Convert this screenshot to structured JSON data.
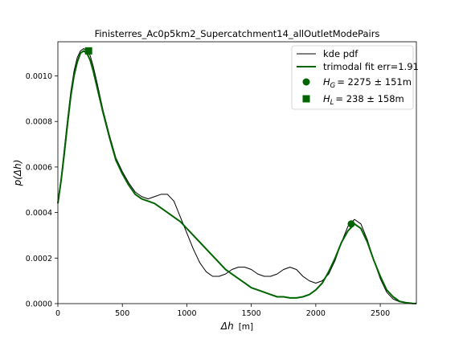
{
  "chart_data": {
    "type": "line",
    "title": "Finisterres_Ac0p5km2_Supercatchment14_allOutletModePairs",
    "xlabel": {
      "math": "Δh",
      "unit": "[m]"
    },
    "ylabel": {
      "math": "p(Δh)"
    },
    "xlim": [
      0,
      2780
    ],
    "ylim": [
      0,
      0.00115
    ],
    "grid": false,
    "legend_position": "upper right",
    "x_ticks": [
      0,
      500,
      1000,
      1500,
      2000,
      2500
    ],
    "x_tick_labels": [
      "0",
      "500",
      "1000",
      "1500",
      "2000",
      "2500"
    ],
    "y_ticks": [
      0,
      0.0002,
      0.0004,
      0.0006,
      0.0008,
      0.001
    ],
    "y_tick_labels": [
      "0.0000",
      "0.0002",
      "0.0004",
      "0.0006",
      "0.0008",
      "0.0010"
    ],
    "series": [
      {
        "name": "kde pdf",
        "color": "#000000",
        "style": "thin-line",
        "x": [
          0,
          25,
          50,
          75,
          100,
          125,
          150,
          175,
          200,
          225,
          250,
          275,
          300,
          350,
          400,
          450,
          500,
          550,
          600,
          650,
          700,
          750,
          800,
          850,
          900,
          950,
          1000,
          1050,
          1100,
          1150,
          1200,
          1250,
          1300,
          1350,
          1400,
          1450,
          1500,
          1550,
          1600,
          1650,
          1700,
          1750,
          1800,
          1850,
          1900,
          1950,
          2000,
          2050,
          2100,
          2150,
          2200,
          2250,
          2300,
          2350,
          2400,
          2450,
          2500,
          2550,
          2600,
          2650,
          2700,
          2750,
          2780
        ],
        "y": [
          0.00045,
          0.00055,
          0.00068,
          0.00081,
          0.00093,
          0.00102,
          0.00108,
          0.00111,
          0.00112,
          0.00111,
          0.00109,
          0.00104,
          0.00098,
          0.00085,
          0.00074,
          0.00064,
          0.00058,
          0.00053,
          0.00049,
          0.00047,
          0.00046,
          0.00047,
          0.00048,
          0.00048,
          0.00045,
          0.00038,
          0.00031,
          0.00024,
          0.00018,
          0.00014,
          0.00012,
          0.00012,
          0.00013,
          0.00015,
          0.00016,
          0.00016,
          0.00015,
          0.00013,
          0.00012,
          0.00012,
          0.00013,
          0.00015,
          0.00016,
          0.00015,
          0.00012,
          0.0001,
          9e-05,
          0.0001,
          0.00013,
          0.00019,
          0.00027,
          0.00034,
          0.00037,
          0.00035,
          0.00028,
          0.00019,
          0.00011,
          5e-05,
          2e-05,
          8e-06,
          3e-06,
          1e-06,
          5e-07
        ]
      },
      {
        "name": "trimodal fit err=1.91",
        "color": "#006400",
        "style": "thick-line",
        "x": [
          0,
          25,
          50,
          75,
          100,
          125,
          150,
          175,
          200,
          225,
          250,
          275,
          300,
          350,
          400,
          450,
          500,
          550,
          600,
          650,
          700,
          750,
          800,
          850,
          900,
          950,
          1000,
          1050,
          1100,
          1150,
          1200,
          1250,
          1300,
          1350,
          1400,
          1450,
          1500,
          1550,
          1600,
          1650,
          1700,
          1750,
          1800,
          1850,
          1900,
          1950,
          2000,
          2050,
          2100,
          2150,
          2200,
          2250,
          2300,
          2350,
          2400,
          2450,
          2500,
          2550,
          2600,
          2650,
          2700,
          2750,
          2780
        ],
        "y": [
          0.00044,
          0.00054,
          0.00066,
          0.00079,
          0.00091,
          0.001,
          0.00106,
          0.0011,
          0.00111,
          0.0011,
          0.00107,
          0.00102,
          0.00096,
          0.00084,
          0.00073,
          0.00063,
          0.00057,
          0.00052,
          0.00048,
          0.00046,
          0.00045,
          0.00044,
          0.00042,
          0.0004,
          0.00038,
          0.00036,
          0.00033,
          0.0003,
          0.00027,
          0.00024,
          0.00021,
          0.00018,
          0.00015,
          0.00013,
          0.00011,
          9e-05,
          7e-05,
          6e-05,
          5e-05,
          4e-05,
          3e-05,
          3e-05,
          2.5e-05,
          2.5e-05,
          3e-05,
          4e-05,
          6e-05,
          9e-05,
          0.00014,
          0.0002,
          0.00027,
          0.00032,
          0.00035,
          0.00033,
          0.00027,
          0.00019,
          0.00012,
          6e-05,
          3e-05,
          1e-05,
          4e-06,
          1e-06,
          5e-07
        ]
      }
    ],
    "markers": [
      {
        "label_math": "H_G",
        "label_value": "= 2275 ± 151m",
        "shape": "circle",
        "color": "#006400",
        "x": 2275,
        "y": 0.00035
      },
      {
        "label_math": "H_L",
        "label_value": "= 238 ± 158m",
        "shape": "square",
        "color": "#006400",
        "x": 238,
        "y": 0.00111
      }
    ]
  }
}
